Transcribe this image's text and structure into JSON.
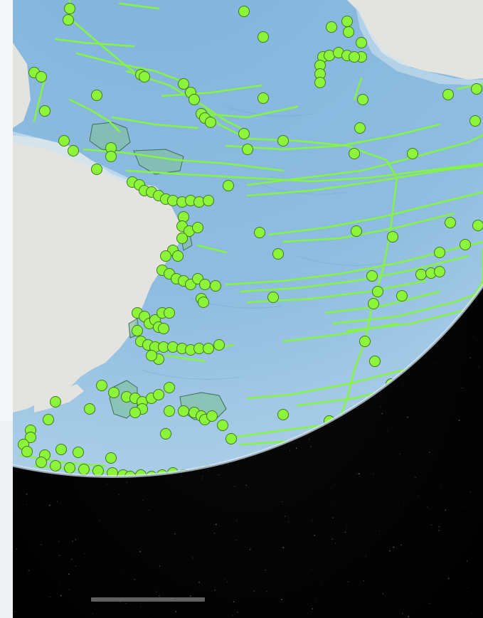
{
  "map": {
    "basemap": "satellite-globe",
    "colors": {
      "ocean": "#8fbde0",
      "land": "#e5e6e0",
      "space": "#000000",
      "track_line": "#84f542",
      "point_fill": "#8cf53a",
      "point_stroke": "#3f7a1c",
      "polygon_fill": "#7fbf9a"
    },
    "layers": [
      {
        "name": "tracks",
        "geometry": "line"
      },
      {
        "name": "stations",
        "geometry": "point"
      },
      {
        "name": "areas",
        "geometry": "polygon"
      }
    ],
    "scale_bar": {
      "visible": true
    }
  }
}
